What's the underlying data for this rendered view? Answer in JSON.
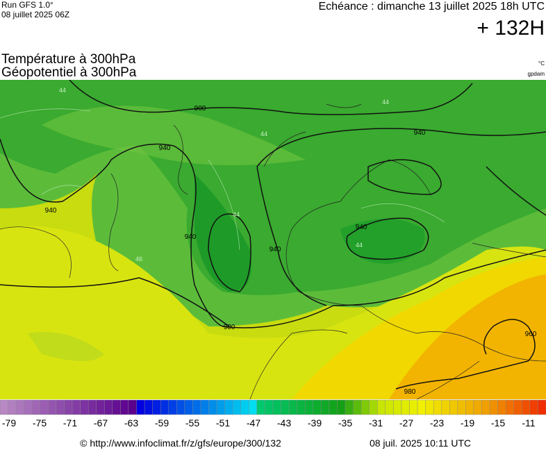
{
  "header": {
    "model": "Run GFS 1.0°",
    "run": "08 juillet 2025 06Z",
    "validity": "Echéance : dimanche 13 juillet 2025 18h UTC",
    "lead": "+ 132H"
  },
  "titles": {
    "line1": "Température à 300hPa",
    "line2": "Géopotentiel à 300hPa",
    "unit1": "°C",
    "unit2": "gpdam"
  },
  "map": {
    "contour_labels": [
      "900",
      "940",
      "940",
      "940",
      "940",
      "940",
      "940",
      "960",
      "980",
      "980"
    ],
    "temp_labels": [
      "44",
      "44",
      "44",
      "44",
      "44",
      "46"
    ]
  },
  "colorbar": {
    "labels": [
      "-79",
      "-75",
      "-71",
      "-67",
      "-63",
      "-59",
      "-55",
      "-51",
      "-47",
      "-43",
      "-39",
      "-35",
      "-31",
      "-27",
      "-23",
      "-19",
      "-15",
      "-11"
    ]
  },
  "footer": {
    "url": "© http://www.infoclimat.fr/z/gfs/europe/300/132",
    "timestamp": "08 juil. 2025 10:11 UTC"
  }
}
